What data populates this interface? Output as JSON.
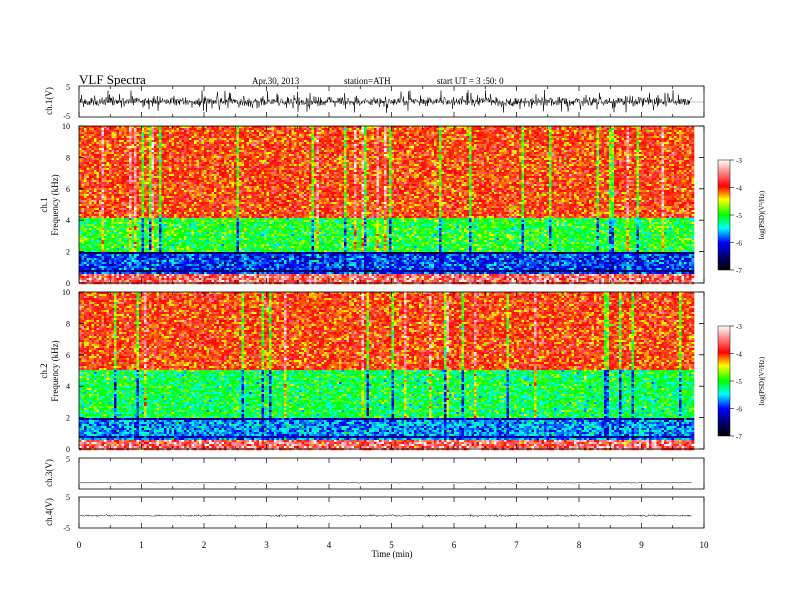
{
  "header": {
    "title": "VLF Spectra",
    "date": "Apr.30, 2013",
    "station": "station=ATH",
    "start": "start UT = 3 :50: 0"
  },
  "chart_data": [
    {
      "id": "ch1-waveform",
      "type": "line",
      "ylabel": "ch.1(V)",
      "y_ticks": [
        "5",
        "-5"
      ],
      "ylim": [
        -5,
        5
      ],
      "xlim": [
        0,
        10
      ],
      "data_end_min": 9.8,
      "amplitude_v": 1.7
    },
    {
      "id": "ch1-spectrogram",
      "type": "heatmap",
      "ylabel_channel": "ch.1",
      "ylabel": "Frequency (kHz)",
      "y_ticks": [
        "0",
        "2",
        "4",
        "6",
        "8",
        "10"
      ],
      "ylim": [
        0,
        10
      ],
      "xlim": [
        0,
        10
      ],
      "colorbar": {
        "label": "log(PSD)(V²/Hz)",
        "ticks": [
          "-3",
          "-4",
          "-5",
          "-6",
          "-7"
        ],
        "range": [
          -7,
          -3
        ]
      },
      "bands": [
        {
          "from_khz": 4.2,
          "to_khz": 10,
          "typical_log_psd": -4.0
        },
        {
          "from_khz": 2.0,
          "to_khz": 4.2,
          "typical_log_psd": -5.0
        },
        {
          "from_khz": 0.6,
          "to_khz": 2.0,
          "typical_log_psd": -5.9
        },
        {
          "from_khz": 0.0,
          "to_khz": 0.6,
          "typical_log_psd": -3.6
        }
      ]
    },
    {
      "id": "ch2-spectrogram",
      "type": "heatmap",
      "ylabel_channel": "ch.2",
      "ylabel": "Frequency (kHz)",
      "y_ticks": [
        "0",
        "2",
        "4",
        "6",
        "8",
        "10"
      ],
      "ylim": [
        0,
        10
      ],
      "xlim": [
        0,
        10
      ],
      "colorbar": {
        "label": "log(PSD)(V²/Hz)",
        "ticks": [
          "-3",
          "-4",
          "-5",
          "-6",
          "-7"
        ],
        "range": [
          -7,
          -3
        ]
      },
      "bands": [
        {
          "from_khz": 5.0,
          "to_khz": 10,
          "typical_log_psd": -4.0
        },
        {
          "from_khz": 2.0,
          "to_khz": 5.0,
          "typical_log_psd": -5.1
        },
        {
          "from_khz": 0.6,
          "to_khz": 2.0,
          "typical_log_psd": -5.7
        },
        {
          "from_khz": 0.0,
          "to_khz": 0.6,
          "typical_log_psd": -3.6
        }
      ]
    },
    {
      "id": "ch3-waveform",
      "type": "line",
      "ylabel": "ch.3(V)",
      "y_ticks": [
        "5"
      ],
      "ylim": [
        -5,
        5
      ],
      "xlim": [
        0,
        10
      ],
      "data_end_min": 9.8,
      "amplitude_v": 0.1,
      "baseline_v": -3.0
    },
    {
      "id": "ch4-waveform",
      "type": "line",
      "ylabel": "ch.4(V)",
      "y_ticks": [
        "5",
        "-5"
      ],
      "ylim": [
        -5,
        5
      ],
      "xlim": [
        0,
        10
      ],
      "data_end_min": 9.8,
      "amplitude_v": 0.3,
      "baseline_v": -1.0
    }
  ],
  "x_axis": {
    "label": "Time (min)",
    "ticks": [
      "0",
      "1",
      "2",
      "3",
      "4",
      "5",
      "6",
      "7",
      "8",
      "9",
      "10"
    ],
    "range": [
      0,
      10
    ]
  },
  "colors": {
    "waveform": "#000000",
    "colormap": [
      "#000000",
      "#0000ff",
      "#00ffff",
      "#00ff00",
      "#ffff00",
      "#ff0000",
      "#ffffff"
    ]
  }
}
